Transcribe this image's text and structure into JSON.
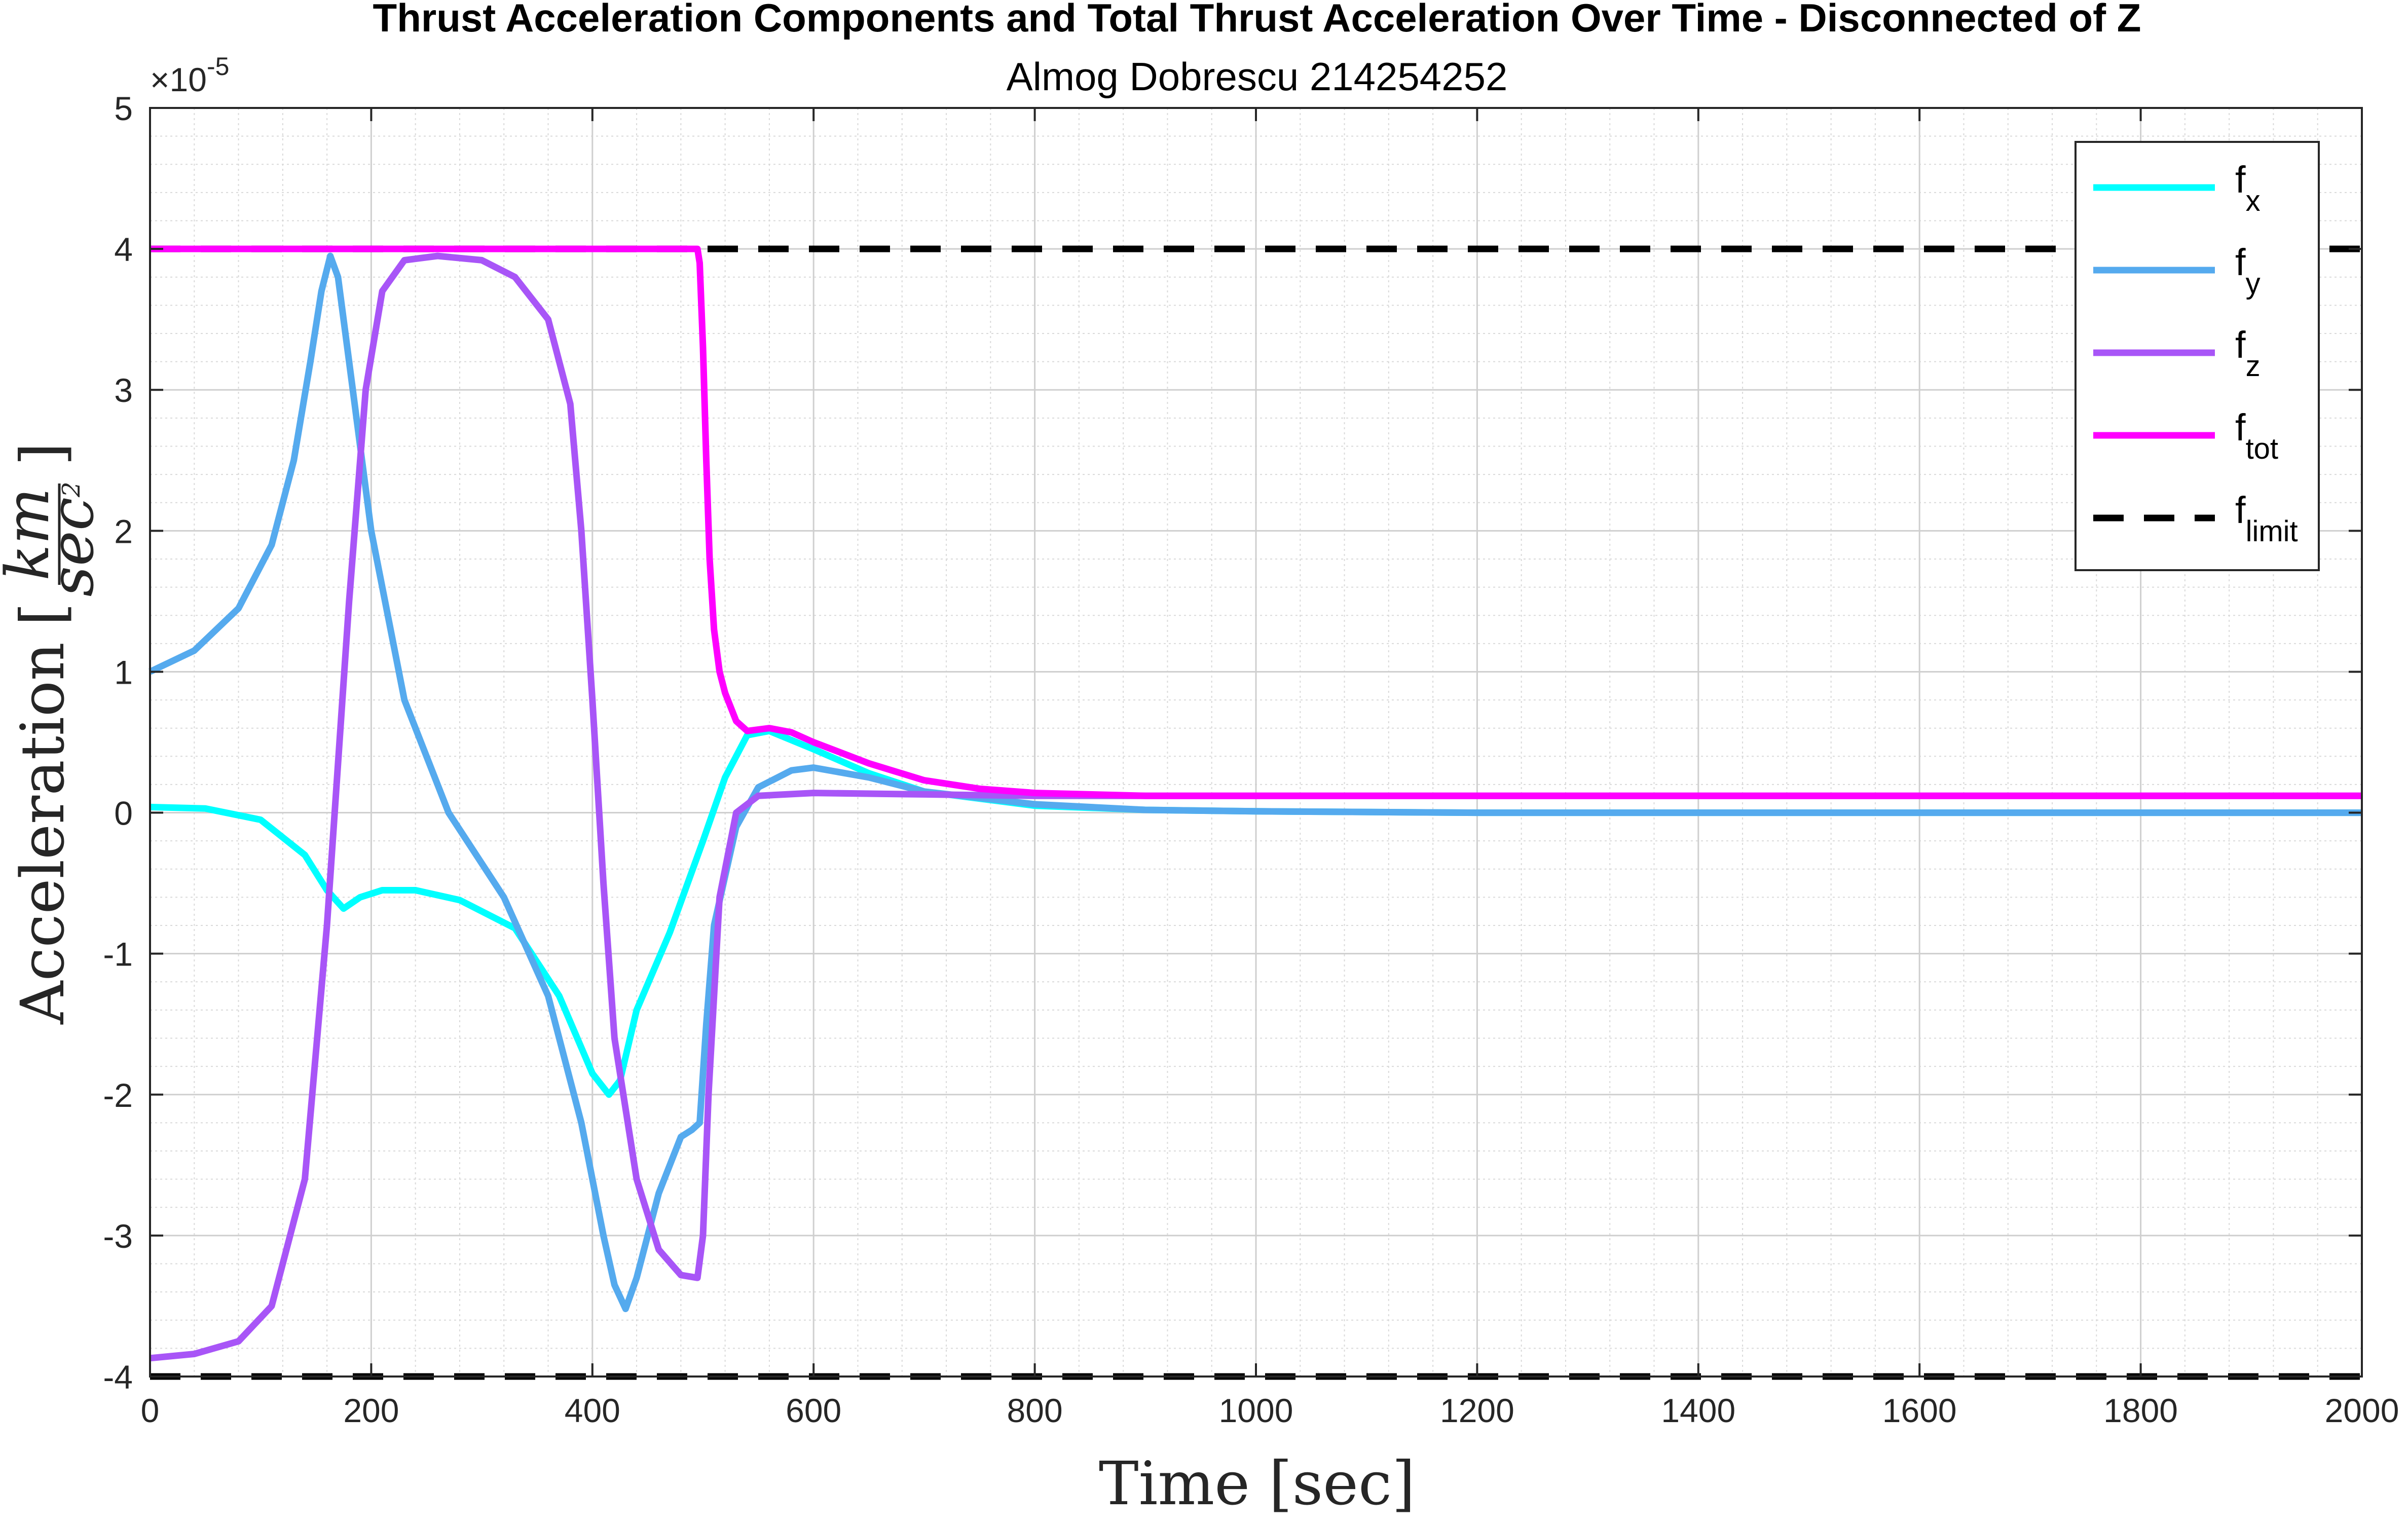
{
  "chart_data": {
    "type": "line",
    "title": "Thrust Acceleration Components and Total Thrust Acceleration Over Time - Disconnected of Z",
    "subtitle": "Almog Dobrescu 214254252",
    "xlabel": "Time [sec]",
    "ylabel_main": "Acceleration",
    "ylabel_unit_num": "km",
    "ylabel_unit_den": "sec",
    "ylabel_unit_den_exp": "2",
    "y_exponent_base": "×10",
    "y_exponent_power": "-5",
    "xlim": [
      0,
      2000
    ],
    "ylim": [
      -4,
      5
    ],
    "xticks": [
      0,
      200,
      400,
      600,
      800,
      1000,
      1200,
      1400,
      1600,
      1800,
      2000
    ],
    "xtick_labels": [
      "0",
      "200",
      "400",
      "600",
      "800",
      "1000",
      "1200",
      "1400",
      "1600",
      "1800",
      "2000"
    ],
    "yticks": [
      -4,
      -3,
      -2,
      -1,
      0,
      1,
      2,
      3,
      4,
      5
    ],
    "ytick_labels": [
      "-4",
      "-3",
      "-2",
      "-1",
      "0",
      "1",
      "2",
      "3",
      "4",
      "5"
    ],
    "grid": true,
    "minor_grid": true,
    "legend_position": "top-right",
    "series": [
      {
        "name": "f",
        "sub": "x",
        "color": "#00FFFF",
        "dash": false,
        "x": [
          0,
          50,
          100,
          140,
          160,
          175,
          190,
          210,
          240,
          280,
          330,
          370,
          400,
          415,
          425,
          440,
          470,
          500,
          520,
          540,
          560,
          600,
          650,
          700,
          800,
          900,
          1000,
          1200,
          2000
        ],
        "y": [
          0.04,
          0.03,
          -0.05,
          -0.3,
          -0.55,
          -0.68,
          -0.6,
          -0.55,
          -0.55,
          -0.62,
          -0.82,
          -1.3,
          -1.85,
          -2.0,
          -1.9,
          -1.4,
          -0.85,
          -0.2,
          0.25,
          0.55,
          0.58,
          0.45,
          0.28,
          0.15,
          0.05,
          0.02,
          0.01,
          0.0,
          0.0
        ]
      },
      {
        "name": "f",
        "sub": "y",
        "color": "#55AAEE",
        "dash": false,
        "x": [
          0,
          40,
          80,
          110,
          130,
          145,
          155,
          163,
          170,
          180,
          200,
          230,
          270,
          320,
          360,
          390,
          410,
          420,
          430,
          440,
          460,
          480,
          490,
          497,
          503,
          510,
          530,
          550,
          580,
          600,
          650,
          700,
          800,
          900,
          1000,
          1200,
          2000
        ],
        "y": [
          1.0,
          1.15,
          1.45,
          1.9,
          2.5,
          3.2,
          3.7,
          3.95,
          3.8,
          3.2,
          2.0,
          0.8,
          0.0,
          -0.6,
          -1.3,
          -2.2,
          -3.0,
          -3.35,
          -3.52,
          -3.3,
          -2.7,
          -2.3,
          -2.25,
          -2.2,
          -1.5,
          -0.8,
          -0.1,
          0.18,
          0.3,
          0.32,
          0.25,
          0.15,
          0.06,
          0.02,
          0.01,
          0.0,
          0.0
        ]
      },
      {
        "name": "f",
        "sub": "z",
        "color": "#A855F7",
        "dash": false,
        "x": [
          0,
          40,
          80,
          110,
          140,
          160,
          180,
          195,
          210,
          230,
          260,
          300,
          330,
          360,
          380,
          390,
          400,
          410,
          420,
          440,
          460,
          480,
          495,
          500,
          505,
          515,
          530,
          550,
          600,
          700,
          800,
          900,
          1000,
          1200,
          2000
        ],
        "y": [
          -3.87,
          -3.84,
          -3.75,
          -3.5,
          -2.6,
          -0.8,
          1.5,
          3.0,
          3.7,
          3.92,
          3.95,
          3.92,
          3.8,
          3.5,
          2.9,
          2.0,
          0.8,
          -0.5,
          -1.6,
          -2.6,
          -3.1,
          -3.28,
          -3.3,
          -3.0,
          -2.0,
          -0.6,
          0.0,
          0.12,
          0.14,
          0.13,
          0.12,
          0.12,
          0.12,
          0.12,
          0.12
        ]
      },
      {
        "name": "f",
        "sub": "tot",
        "color": "#FF00FF",
        "dash": false,
        "x": [
          0,
          495,
          497,
          500,
          503,
          506,
          510,
          515,
          520,
          530,
          540,
          560,
          580,
          600,
          650,
          700,
          750,
          800,
          900,
          1000,
          1200,
          2000
        ],
        "y": [
          4.0,
          4.0,
          3.9,
          3.3,
          2.5,
          1.8,
          1.3,
          1.0,
          0.85,
          0.65,
          0.58,
          0.6,
          0.57,
          0.5,
          0.35,
          0.23,
          0.17,
          0.14,
          0.12,
          0.12,
          0.12,
          0.12
        ]
      },
      {
        "name": "f",
        "sub": "limit",
        "color": "#000000",
        "dash": true,
        "x": [
          0,
          2000
        ],
        "y": [
          4.0,
          4.0
        ]
      },
      {
        "name": "",
        "sub": "",
        "color": "#000000",
        "dash": true,
        "legend": false,
        "x": [
          0,
          2000
        ],
        "y": [
          -4.0,
          -4.0
        ]
      }
    ]
  }
}
